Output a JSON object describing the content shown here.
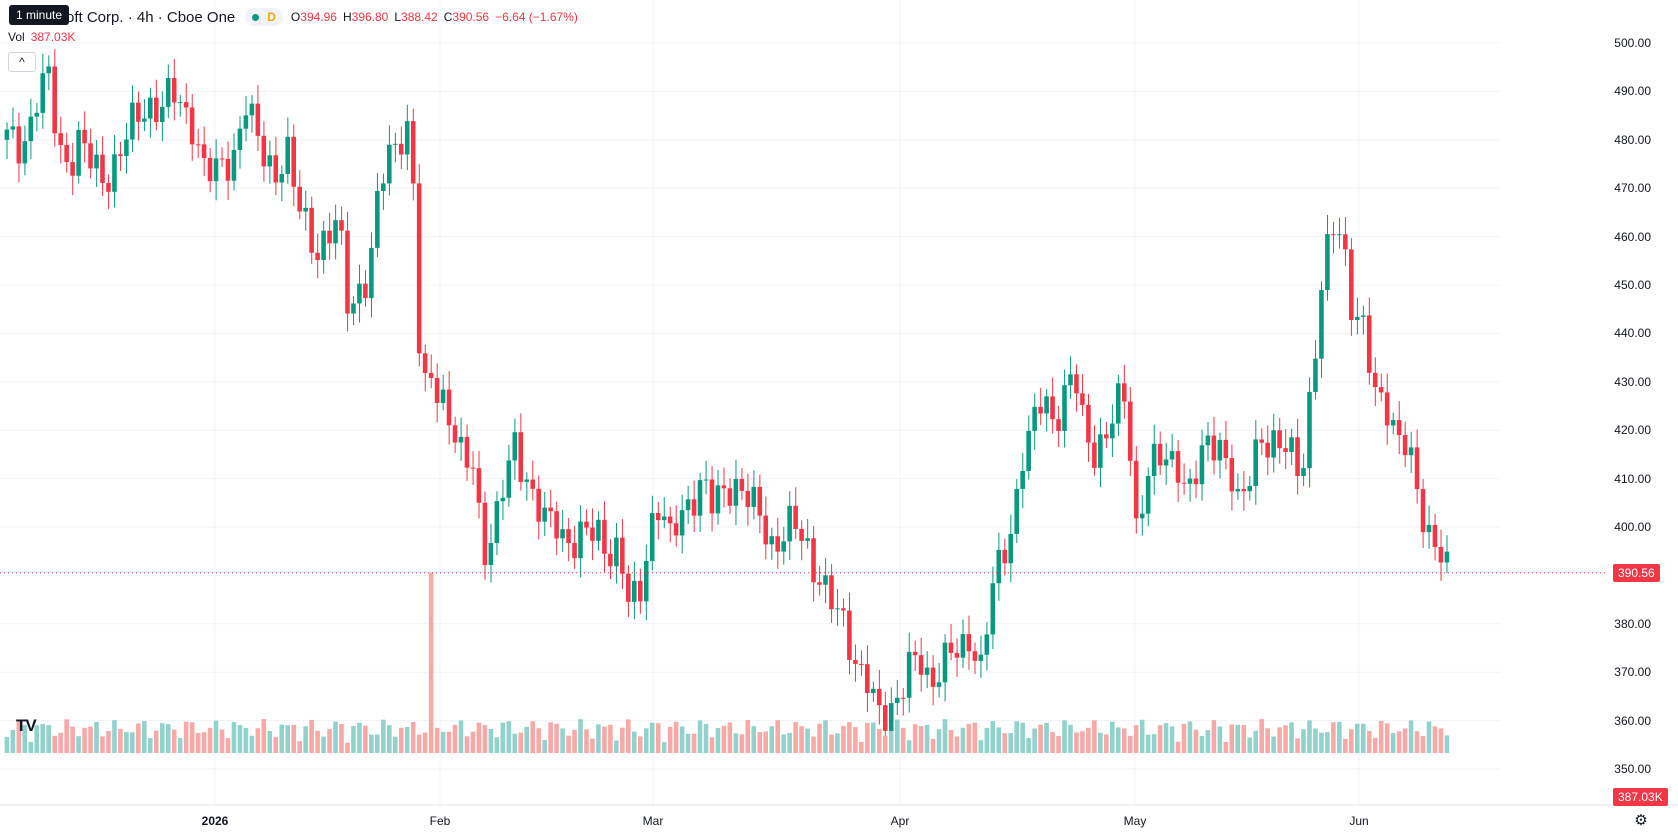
{
  "header": {
    "tooltip": "1 minute",
    "symbol": "oft Corp. · 4h · Cboe One",
    "status_badge": "D",
    "ohlc": {
      "o_label": "O",
      "o": "394.96",
      "h_label": "H",
      "h": "396.80",
      "l_label": "L",
      "l": "388.42",
      "c_label": "C",
      "c": "390.56"
    },
    "change": "−6.64 (−1.67%)",
    "volume_label": "Vol",
    "volume": "387.03K"
  },
  "colors": {
    "up": "#089981",
    "down": "#f23645",
    "up_vol": "#92d2cc",
    "down_vol": "#f7a9a7",
    "grid": "#f0f3fa"
  },
  "icons": {
    "collapse": "chevron-up-icon",
    "logo": "tradingview-logo-icon",
    "settings": "gear-icon"
  },
  "logo_text": "TV",
  "y_axis": {
    "ticks": [
      "500.00",
      "490.00",
      "480.00",
      "470.00",
      "460.00",
      "450.00",
      "440.00",
      "430.00",
      "420.00",
      "410.00",
      "400.00",
      "390.00",
      "380.00",
      "370.00",
      "360.00",
      "350.00"
    ],
    "last_price": "390.56",
    "last_volume": "387.03K"
  },
  "x_axis": {
    "ticks": [
      "2026",
      "Feb",
      "Mar",
      "Apr",
      "May",
      "Jun"
    ]
  },
  "chart_data": {
    "type": "candlestick",
    "y_range": [
      348,
      505
    ],
    "series": [
      {
        "name": "price",
        "close_path": [
          480,
          478,
          482,
          490,
          492,
          478,
          476,
          480,
          475,
          472,
          474,
          478,
          482,
          486,
          488,
          487,
          489,
          486,
          484,
          474,
          472,
          475,
          478,
          488,
          480,
          476,
          474,
          478,
          466,
          462,
          458,
          460,
          462,
          445,
          450,
          452,
          470,
          478,
          482,
          482,
          425,
          432,
          428,
          420,
          412,
          414,
          396,
          398,
          408,
          418,
          412,
          404,
          400,
          402,
          398,
          396,
          398,
          400,
          396,
          394,
          384,
          386,
          400,
          404,
          396,
          404,
          406,
          408,
          404,
          408,
          410,
          406,
          404,
          402,
          396,
          398,
          400,
          398,
          392,
          386,
          382,
          380,
          372,
          368,
          360,
          362,
          366,
          370,
          372,
          368,
          372,
          374,
          372,
          378,
          372,
          386,
          392,
          400,
          416,
          420,
          426,
          422,
          428,
          432,
          418,
          416,
          420,
          424,
          426,
          400,
          412,
          414,
          412,
          414,
          408,
          412,
          416,
          418,
          414,
          402,
          410,
          420,
          418,
          416,
          414,
          412,
          432,
          450,
          462,
          460,
          444,
          440,
          426,
          428,
          420,
          416,
          408,
          400,
          398,
          390
        ]
      },
      {
        "name": "volume",
        "approx_range": [
          348,
          384
        ]
      }
    ]
  }
}
